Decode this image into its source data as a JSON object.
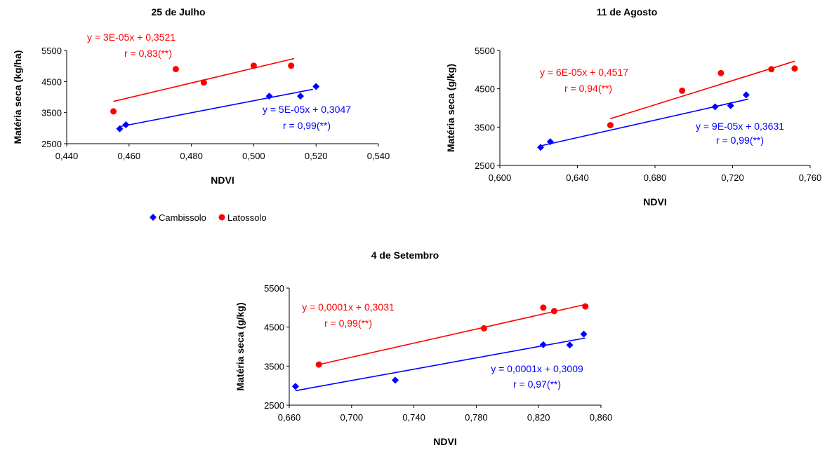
{
  "colors": {
    "cambissolo": "#0000ff",
    "latossolo": "#ff0000",
    "axis": "#000000"
  },
  "legend": [
    {
      "label": "Cambissolo",
      "marker": "diamond",
      "color": "#0000ff"
    },
    {
      "label": "Latossolo",
      "marker": "circle",
      "color": "#ff0000"
    }
  ],
  "chart_data": [
    {
      "type": "scatter",
      "title": "25 de Julho",
      "xlabel": "NDVI",
      "ylabel": "Matéria seca (kg/ha)",
      "xlim": [
        0.44,
        0.54
      ],
      "ylim": [
        2500,
        5500
      ],
      "xticks": [
        "0,440",
        "0,460",
        "0,480",
        "0,500",
        "0,520",
        "0,540"
      ],
      "yticks": [
        "2500",
        "3500",
        "4500",
        "5500"
      ],
      "series": [
        {
          "name": "Cambissolo",
          "marker": "diamond",
          "color": "#0000ff",
          "points": [
            [
              0.457,
              2980
            ],
            [
              0.459,
              3110
            ],
            [
              0.505,
              4030
            ],
            [
              0.515,
              4030
            ],
            [
              0.52,
              4340
            ]
          ],
          "trend": [
            [
              0.457,
              3050
            ],
            [
              0.519,
              4250
            ]
          ],
          "equation": "y = 5E-05x + 0,3047",
          "r": "r = 0,99(**)"
        },
        {
          "name": "Latossolo",
          "marker": "circle",
          "color": "#ff0000",
          "points": [
            [
              0.455,
              3540
            ],
            [
              0.475,
              4900
            ],
            [
              0.484,
              4470
            ],
            [
              0.5,
              5010
            ],
            [
              0.512,
              5010
            ]
          ],
          "trend": [
            [
              0.455,
              3860
            ],
            [
              0.513,
              5240
            ]
          ],
          "equation": "y = 3E-05x + 0,3521",
          "r": "r = 0,83(**)"
        }
      ]
    },
    {
      "type": "scatter",
      "title": "11 de Agosto",
      "xlabel": "NDVI",
      "ylabel": "Matéria seca (g/kg)",
      "xlim": [
        0.6,
        0.76
      ],
      "ylim": [
        2500,
        5500
      ],
      "xticks": [
        "0,600",
        "0,640",
        "0,680",
        "0,720",
        "0,760"
      ],
      "yticks": [
        "2500",
        "3500",
        "4500",
        "5500"
      ],
      "series": [
        {
          "name": "Cambissolo",
          "marker": "diamond",
          "color": "#0000ff",
          "points": [
            [
              0.621,
              2970
            ],
            [
              0.626,
              3120
            ],
            [
              0.711,
              4030
            ],
            [
              0.719,
              4060
            ],
            [
              0.727,
              4340
            ]
          ],
          "trend": [
            [
              0.621,
              3010
            ],
            [
              0.728,
              4230
            ]
          ],
          "equation": "y = 9E-05x + 0,3631",
          "r": "r = 0,99(**)"
        },
        {
          "name": "Latossolo",
          "marker": "circle",
          "color": "#ff0000",
          "points": [
            [
              0.657,
              3550
            ],
            [
              0.694,
              4450
            ],
            [
              0.714,
              4910
            ],
            [
              0.74,
              5010
            ],
            [
              0.752,
              5030
            ]
          ],
          "trend": [
            [
              0.657,
              3720
            ],
            [
              0.752,
              5220
            ]
          ],
          "equation": "y = 6E-05x + 0,4517",
          "r": "r = 0,94(**)"
        }
      ]
    },
    {
      "type": "scatter",
      "title": "4 de Setembro",
      "xlabel": "NDVI",
      "ylabel": "Matéria seca (g/kg)",
      "xlim": [
        0.66,
        0.86
      ],
      "ylim": [
        2500,
        5500
      ],
      "xticks": [
        "0,660",
        "0,700",
        "0,740",
        "0,780",
        "0,820",
        "0,860"
      ],
      "yticks": [
        "2500",
        "3500",
        "4500",
        "5500"
      ],
      "series": [
        {
          "name": "Cambissolo",
          "marker": "diamond",
          "color": "#0000ff",
          "points": [
            [
              0.664,
              2980
            ],
            [
              0.728,
              3140
            ],
            [
              0.823,
              4050
            ],
            [
              0.84,
              4040
            ],
            [
              0.849,
              4320
            ]
          ],
          "trend": [
            [
              0.664,
              2870
            ],
            [
              0.85,
              4220
            ]
          ],
          "equation": "y = 0,0001x + 0,3009",
          "r": "r = 0,97(**)"
        },
        {
          "name": "Latossolo",
          "marker": "circle",
          "color": "#ff0000",
          "points": [
            [
              0.679,
              3540
            ],
            [
              0.785,
              4470
            ],
            [
              0.823,
              5000
            ],
            [
              0.83,
              4910
            ],
            [
              0.85,
              5030
            ]
          ],
          "trend": [
            [
              0.679,
              3540
            ],
            [
              0.85,
              5080
            ]
          ],
          "equation": "y = 0,0001x + 0,3031",
          "r": "r = 0,99(**)"
        }
      ]
    }
  ]
}
